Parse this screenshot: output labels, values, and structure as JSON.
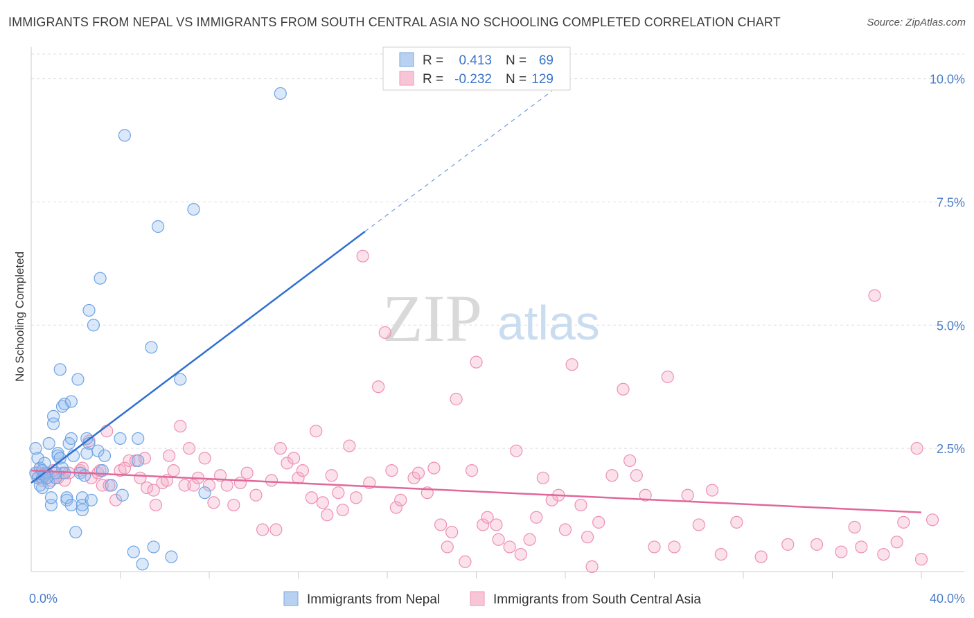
{
  "title": "IMMIGRANTS FROM NEPAL VS IMMIGRANTS FROM SOUTH CENTRAL ASIA NO SCHOOLING COMPLETED CORRELATION CHART",
  "source": "Source: ZipAtlas.com",
  "watermark": {
    "zip": "ZIP",
    "atlas": "atlas"
  },
  "legend_box": {
    "rows": [
      {
        "r_label": "R =",
        "r_value": "0.413",
        "n_label": "N =",
        "n_value": "69"
      },
      {
        "r_label": "R =",
        "r_value": "-0.232",
        "n_label": "N =",
        "n_value": "129"
      }
    ]
  },
  "chart_data": {
    "type": "scatter",
    "title": "IMMIGRANTS FROM NEPAL VS IMMIGRANTS FROM SOUTH CENTRAL ASIA NO SCHOOLING COMPLETED CORRELATION CHART",
    "xlabel": "",
    "ylabel": "No Schooling Completed",
    "xlim": [
      0,
      40
    ],
    "ylim": [
      0,
      10.5
    ],
    "x_tick_labels": [
      "0.0%",
      "40.0%"
    ],
    "y_ticks": [
      2.5,
      5.0,
      7.5,
      10.0
    ],
    "y_tick_labels": [
      "2.5%",
      "5.0%",
      "7.5%",
      "10.0%"
    ],
    "grid": "horizontal dashed",
    "legend_position": "bottom",
    "colors": {
      "nepal": "#6ea3e4",
      "sca": "#ee8fb0",
      "nepal_line": "#2f6fcf",
      "sca_line": "#e0679a"
    },
    "series": [
      {
        "name": "Immigrants from Nepal",
        "R": 0.413,
        "N": 69,
        "trend": {
          "x0": 0,
          "y0": 1.8,
          "x1": 15,
          "y1": 6.9,
          "dash_to_x": 23.4,
          "dash_to_y": 9.75
        },
        "points": [
          [
            0.2,
            2.0
          ],
          [
            0.3,
            1.9
          ],
          [
            0.3,
            2.3
          ],
          [
            0.4,
            2.1
          ],
          [
            0.5,
            1.9
          ],
          [
            0.5,
            1.7
          ],
          [
            0.6,
            1.95
          ],
          [
            0.6,
            2.2
          ],
          [
            0.7,
            2.0
          ],
          [
            0.8,
            2.6
          ],
          [
            0.8,
            1.8
          ],
          [
            0.9,
            1.35
          ],
          [
            0.9,
            1.5
          ],
          [
            1.0,
            3.15
          ],
          [
            1.0,
            3.0
          ],
          [
            1.1,
            1.9
          ],
          [
            1.2,
            2.4
          ],
          [
            1.2,
            2.35
          ],
          [
            1.3,
            4.1
          ],
          [
            1.4,
            3.35
          ],
          [
            1.4,
            2.1
          ],
          [
            1.5,
            2.0
          ],
          [
            1.5,
            3.4
          ],
          [
            1.6,
            1.45
          ],
          [
            1.6,
            1.5
          ],
          [
            1.7,
            2.6
          ],
          [
            1.8,
            3.45
          ],
          [
            1.8,
            2.7
          ],
          [
            1.8,
            1.35
          ],
          [
            1.9,
            2.35
          ],
          [
            2.1,
            3.9
          ],
          [
            2.0,
            0.8
          ],
          [
            2.2,
            2.0
          ],
          [
            2.3,
            1.5
          ],
          [
            2.3,
            1.25
          ],
          [
            2.3,
            1.35
          ],
          [
            2.5,
            2.4
          ],
          [
            2.5,
            2.7
          ],
          [
            2.6,
            2.6
          ],
          [
            2.7,
            1.45
          ],
          [
            2.6,
            5.3
          ],
          [
            2.8,
            5.0
          ],
          [
            3.0,
            2.45
          ],
          [
            3.1,
            5.95
          ],
          [
            3.2,
            2.05
          ],
          [
            3.3,
            2.35
          ],
          [
            3.6,
            1.75
          ],
          [
            4.0,
            2.7
          ],
          [
            4.1,
            1.55
          ],
          [
            4.2,
            8.85
          ],
          [
            4.6,
            0.4
          ],
          [
            4.8,
            2.25
          ],
          [
            4.8,
            2.7
          ],
          [
            5.0,
            0.15
          ],
          [
            5.4,
            4.55
          ],
          [
            5.5,
            0.5
          ],
          [
            5.7,
            7.0
          ],
          [
            6.3,
            0.3
          ],
          [
            6.7,
            3.9
          ],
          [
            7.3,
            7.35
          ],
          [
            7.8,
            1.6
          ],
          [
            11.2,
            9.7
          ],
          [
            0.2,
            2.5
          ],
          [
            0.4,
            1.75
          ],
          [
            0.5,
            2.05
          ],
          [
            0.7,
            1.9
          ],
          [
            1.1,
            2.0
          ],
          [
            1.3,
            2.3
          ],
          [
            2.4,
            1.95
          ]
        ]
      },
      {
        "name": "Immigrants from South Central Asia",
        "R": -0.232,
        "N": 129,
        "trend": {
          "x0": 0,
          "y0": 2.05,
          "x1": 40,
          "y1": 1.2
        },
        "points": [
          [
            0.2,
            2.0
          ],
          [
            0.3,
            1.9
          ],
          [
            0.4,
            2.1
          ],
          [
            0.5,
            1.85
          ],
          [
            0.6,
            2.0
          ],
          [
            0.7,
            2.0
          ],
          [
            0.8,
            1.95
          ],
          [
            0.9,
            1.85
          ],
          [
            1.0,
            2.05
          ],
          [
            1.2,
            1.9
          ],
          [
            1.4,
            2.0
          ],
          [
            1.5,
            1.85
          ],
          [
            1.7,
            2.0
          ],
          [
            2.2,
            2.05
          ],
          [
            2.3,
            2.1
          ],
          [
            2.6,
            2.65
          ],
          [
            2.7,
            1.9
          ],
          [
            3.0,
            2.0
          ],
          [
            3.1,
            2.05
          ],
          [
            3.2,
            1.75
          ],
          [
            3.4,
            2.85
          ],
          [
            3.5,
            1.75
          ],
          [
            3.8,
            1.45
          ],
          [
            4.0,
            2.05
          ],
          [
            4.2,
            2.1
          ],
          [
            4.4,
            2.25
          ],
          [
            4.7,
            2.25
          ],
          [
            4.9,
            1.9
          ],
          [
            5.1,
            2.3
          ],
          [
            5.2,
            1.7
          ],
          [
            5.5,
            1.65
          ],
          [
            5.6,
            1.35
          ],
          [
            5.9,
            1.8
          ],
          [
            6.1,
            1.85
          ],
          [
            6.2,
            2.35
          ],
          [
            6.4,
            2.05
          ],
          [
            6.7,
            2.95
          ],
          [
            6.9,
            1.75
          ],
          [
            7.1,
            2.5
          ],
          [
            7.3,
            1.75
          ],
          [
            7.5,
            1.9
          ],
          [
            7.8,
            2.3
          ],
          [
            8.0,
            1.75
          ],
          [
            8.2,
            1.4
          ],
          [
            8.5,
            1.95
          ],
          [
            8.8,
            1.75
          ],
          [
            9.1,
            1.35
          ],
          [
            9.4,
            1.8
          ],
          [
            9.7,
            2.0
          ],
          [
            10.1,
            1.55
          ],
          [
            10.4,
            0.85
          ],
          [
            10.8,
            1.85
          ],
          [
            11.0,
            0.85
          ],
          [
            11.2,
            2.5
          ],
          [
            11.5,
            2.2
          ],
          [
            11.8,
            2.3
          ],
          [
            12.0,
            1.9
          ],
          [
            12.2,
            2.05
          ],
          [
            12.6,
            1.5
          ],
          [
            12.8,
            2.85
          ],
          [
            13.1,
            1.4
          ],
          [
            13.3,
            1.15
          ],
          [
            13.5,
            1.95
          ],
          [
            13.8,
            1.6
          ],
          [
            14.0,
            1.25
          ],
          [
            14.3,
            2.55
          ],
          [
            14.6,
            1.5
          ],
          [
            14.9,
            6.4
          ],
          [
            15.2,
            1.8
          ],
          [
            15.6,
            3.75
          ],
          [
            15.9,
            4.85
          ],
          [
            16.2,
            2.05
          ],
          [
            16.4,
            1.3
          ],
          [
            16.6,
            1.45
          ],
          [
            17.2,
            1.9
          ],
          [
            17.4,
            2.0
          ],
          [
            17.8,
            1.6
          ],
          [
            18.1,
            2.1
          ],
          [
            18.4,
            0.95
          ],
          [
            18.7,
            0.5
          ],
          [
            18.9,
            0.8
          ],
          [
            19.1,
            3.5
          ],
          [
            19.5,
            0.2
          ],
          [
            19.8,
            2.05
          ],
          [
            20.0,
            4.25
          ],
          [
            20.3,
            0.95
          ],
          [
            20.5,
            1.1
          ],
          [
            20.9,
            0.95
          ],
          [
            21.0,
            0.65
          ],
          [
            21.5,
            0.5
          ],
          [
            21.8,
            2.45
          ],
          [
            22.0,
            0.35
          ],
          [
            22.4,
            0.65
          ],
          [
            22.7,
            1.1
          ],
          [
            23.0,
            1.9
          ],
          [
            23.4,
            1.45
          ],
          [
            23.7,
            1.55
          ],
          [
            24.0,
            0.85
          ],
          [
            24.3,
            4.2
          ],
          [
            24.7,
            1.35
          ],
          [
            25.0,
            0.7
          ],
          [
            25.2,
            0.1
          ],
          [
            25.5,
            1.0
          ],
          [
            26.1,
            1.95
          ],
          [
            26.6,
            3.7
          ],
          [
            26.9,
            2.25
          ],
          [
            27.2,
            1.95
          ],
          [
            27.6,
            1.55
          ],
          [
            28.0,
            0.5
          ],
          [
            28.6,
            3.95
          ],
          [
            28.9,
            0.5
          ],
          [
            29.5,
            1.55
          ],
          [
            30.0,
            0.95
          ],
          [
            30.6,
            1.65
          ],
          [
            31.0,
            0.35
          ],
          [
            31.7,
            1.0
          ],
          [
            32.8,
            0.3
          ],
          [
            34.0,
            0.55
          ],
          [
            35.3,
            0.55
          ],
          [
            36.4,
            0.4
          ],
          [
            37.0,
            0.9
          ],
          [
            37.3,
            0.5
          ],
          [
            37.9,
            5.6
          ],
          [
            38.3,
            0.35
          ],
          [
            38.9,
            0.6
          ],
          [
            39.2,
            1.0
          ],
          [
            39.8,
            2.5
          ],
          [
            40.0,
            0.25
          ],
          [
            40.5,
            1.05
          ]
        ]
      }
    ]
  },
  "bottom_legend": [
    "Immigrants from Nepal",
    "Immigrants from South Central Asia"
  ]
}
